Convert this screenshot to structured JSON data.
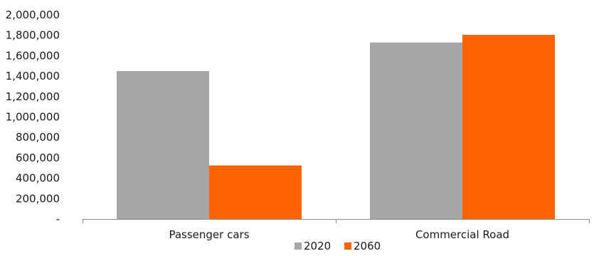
{
  "chart_data": {
    "type": "bar",
    "title": "",
    "xlabel": "",
    "ylabel": "",
    "categories": [
      "Passenger cars",
      "Commercial Road"
    ],
    "series": [
      {
        "name": "2020",
        "color": "#a6a6a6",
        "values": [
          1450000,
          1730000
        ]
      },
      {
        "name": "2060",
        "color": "#ff6200",
        "values": [
          525000,
          1805000
        ]
      }
    ],
    "ylim": [
      0,
      2000000
    ],
    "yticks": [
      {
        "value": 0,
        "label": "-"
      },
      {
        "value": 200000,
        "label": "200,000"
      },
      {
        "value": 400000,
        "label": "400,000"
      },
      {
        "value": 600000,
        "label": "600,000"
      },
      {
        "value": 800000,
        "label": "800,000"
      },
      {
        "value": 1000000,
        "label": "1,000,000"
      },
      {
        "value": 1200000,
        "label": "1,200,000"
      },
      {
        "value": 1400000,
        "label": "1,400,000"
      },
      {
        "value": 1600000,
        "label": "1,600,000"
      },
      {
        "value": 1800000,
        "label": "1,800,000"
      },
      {
        "value": 2000000,
        "label": "2,000,000"
      }
    ],
    "grid": false,
    "legend": "bottom-center"
  }
}
